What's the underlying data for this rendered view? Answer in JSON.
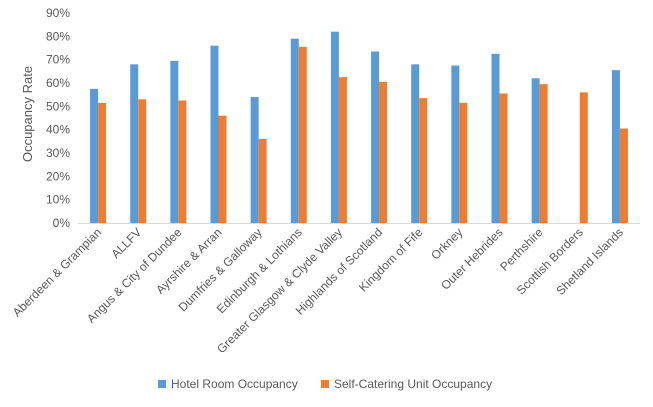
{
  "chart_data": {
    "type": "bar",
    "title": "",
    "xlabel": "",
    "ylabel": "Occupancy Rate",
    "ylim": [
      0,
      90
    ],
    "yticks": [
      0,
      10,
      20,
      30,
      40,
      50,
      60,
      70,
      80,
      90
    ],
    "ytick_format": "%",
    "grid": false,
    "legend_position": "bottom",
    "categories": [
      "Aberdeen & Grampian",
      "ALLFV",
      "Angus & City of Dundee",
      "Ayrshire & Arran",
      "Dumfries & Galloway",
      "Edinburgh & Lothians",
      "Greater Glasgow & Clyde Valley",
      "Highlands of Scotland",
      "Kingdom of Fife",
      "Orkney",
      "Outer Hebrides",
      "Perthshire",
      "Scottish Borders",
      "Shetland Islands"
    ],
    "series": [
      {
        "name": "Hotel Room Occupancy",
        "color": "#5B9BD5",
        "values": [
          57.5,
          68,
          69.5,
          76,
          54,
          79,
          82,
          73.5,
          68,
          67.5,
          72.5,
          62,
          null,
          65.5
        ]
      },
      {
        "name": "Self-Catering Unit Occupancy",
        "color": "#ED7D31",
        "values": [
          51.5,
          53,
          52.5,
          46,
          36,
          75.5,
          62.5,
          60.5,
          53.5,
          51.5,
          55.5,
          59.5,
          56,
          40.5
        ]
      }
    ]
  }
}
